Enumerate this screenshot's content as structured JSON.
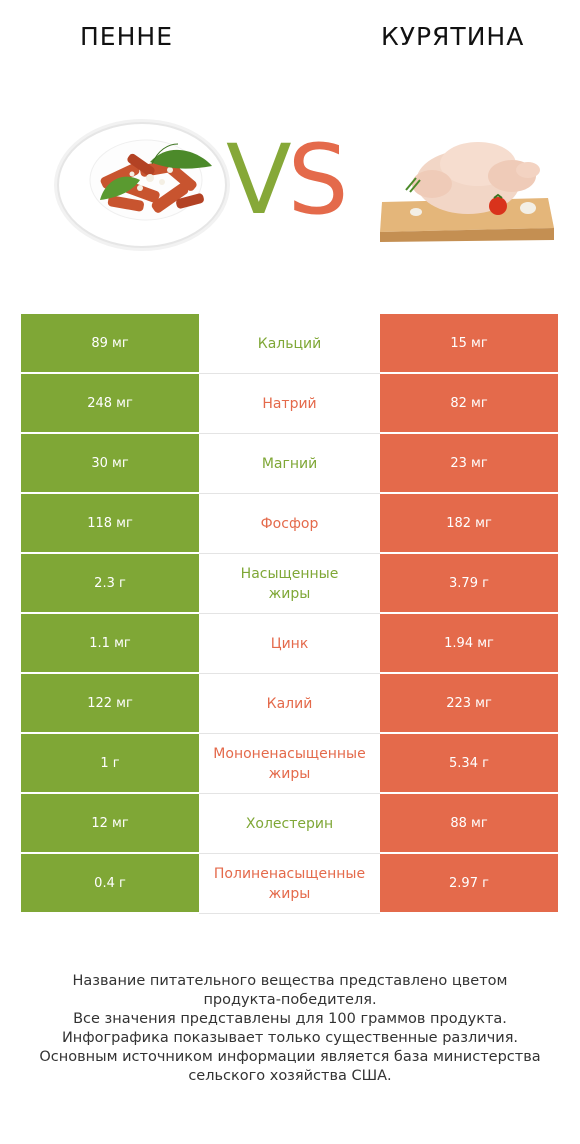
{
  "header": {
    "left_title": "ПЕННЕ",
    "right_title": "КУРЯТИНА"
  },
  "vs": {
    "v": "V",
    "s": "S"
  },
  "colors": {
    "winner_left": "#7fa736",
    "winner_right": "#e46a4b"
  },
  "rows": [
    {
      "left": "89 мг",
      "nutrient": "Кальций",
      "right": "15 мг",
      "winner": "left"
    },
    {
      "left": "248 мг",
      "nutrient": "Натрий",
      "right": "82 мг",
      "winner": "right"
    },
    {
      "left": "30 мг",
      "nutrient": "Магний",
      "right": "23 мг",
      "winner": "left"
    },
    {
      "left": "118 мг",
      "nutrient": "Фосфор",
      "right": "182 мг",
      "winner": "right"
    },
    {
      "left": "2.3 г",
      "nutrient": "Насыщенные\nжиры",
      "right": "3.79 г",
      "winner": "left"
    },
    {
      "left": "1.1 мг",
      "nutrient": "Цинк",
      "right": "1.94 мг",
      "winner": "right"
    },
    {
      "left": "122 мг",
      "nutrient": "Калий",
      "right": "223 мг",
      "winner": "right"
    },
    {
      "left": "1 г",
      "nutrient": "Мононенасыщенные\nжиры",
      "right": "5.34 г",
      "winner": "right"
    },
    {
      "left": "12 мг",
      "nutrient": "Холестерин",
      "right": "88 мг",
      "winner": "left"
    },
    {
      "left": "0.4 г",
      "nutrient": "Полиненасыщенные\nжиры",
      "right": "2.97 г",
      "winner": "right"
    }
  ],
  "footer": {
    "line1": "Название питательного вещества представлено цветом",
    "line2": "продукта-победителя.",
    "line3": "Все значения представлены для 100 граммов продукта.",
    "line4": "Инфографика показывает только существенные различия.",
    "line5": "Основным источником информации является база министерства",
    "line6": "сельского хозяйства США."
  }
}
